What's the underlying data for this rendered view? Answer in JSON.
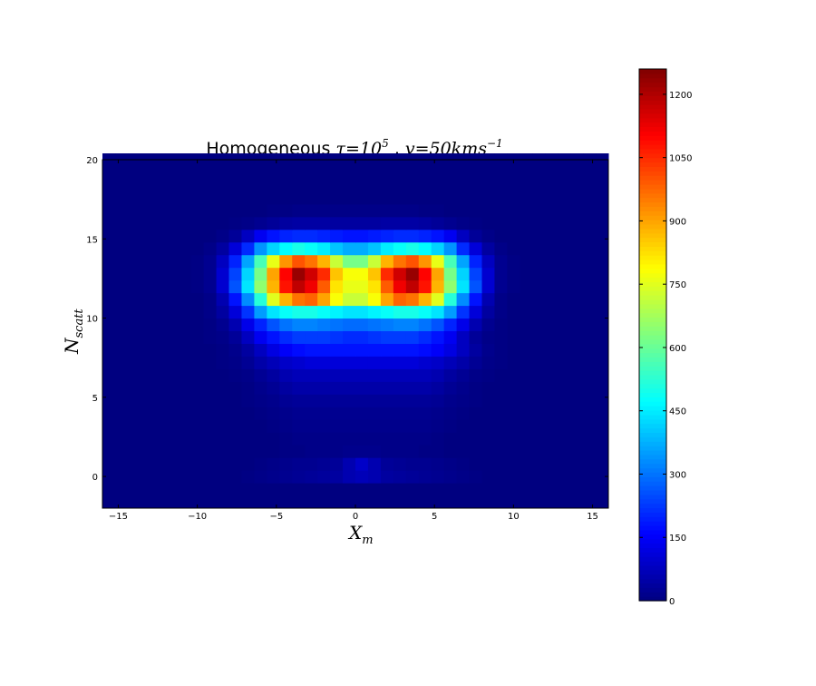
{
  "chart_data": {
    "type": "heatmap",
    "title": {
      "prefix": "Homogeneous ",
      "tau_symbol": "τ",
      "tau_eq": "=10",
      "tau_exp": "5",
      "separator": " , ",
      "v_symbol": "v",
      "v_eq": "=50kms",
      "v_exp": "−1"
    },
    "xlabel": {
      "base": "X",
      "sub": "m"
    },
    "ylabel": {
      "base": "N",
      "sub": "scatt"
    },
    "xlim": [
      -16,
      16
    ],
    "ylim": [
      -2,
      20
    ],
    "xticks": [
      -15,
      -10,
      -5,
      0,
      5,
      10,
      15
    ],
    "xtick_labels": [
      "−15",
      "−10",
      "−5",
      "0",
      "5",
      "10",
      "15"
    ],
    "yticks": [
      0,
      5,
      10,
      15,
      20
    ],
    "ytick_labels": [
      "0",
      "5",
      "10",
      "15",
      "20"
    ],
    "colormap": "jet",
    "colorbar": {
      "vmin": 0,
      "vmax": 1260,
      "ticks": [
        0,
        150,
        300,
        450,
        600,
        750,
        900,
        1050,
        1200
      ],
      "tick_labels": [
        "0",
        "150",
        "300",
        "450",
        "600",
        "750",
        "900",
        "1050",
        "1200"
      ]
    },
    "bins": {
      "x_start": -16,
      "x_step": 0.8,
      "nx": 40,
      "y_start": -2,
      "y_step": 0.8,
      "ny": 28
    },
    "rows_y_index": [
      0,
      1,
      2,
      3,
      4,
      5,
      6,
      7,
      8,
      9,
      10,
      11,
      12,
      13,
      14,
      15,
      16,
      17,
      18,
      19,
      20,
      21,
      22,
      23,
      24,
      25,
      26,
      27
    ],
    "values": [
      [
        0,
        0,
        0,
        0,
        0,
        0,
        0,
        0,
        0,
        0,
        0,
        0,
        0,
        0,
        0,
        0,
        0,
        0,
        0,
        0,
        0,
        0,
        0,
        0,
        0,
        0,
        0,
        0,
        0,
        0,
        0,
        0,
        0,
        0,
        0,
        0,
        0,
        0,
        0,
        0
      ],
      [
        0,
        0,
        0,
        0,
        0,
        0,
        0,
        0,
        0,
        0,
        0,
        0,
        0,
        0,
        0,
        0,
        0,
        0,
        0,
        0,
        0,
        0,
        0,
        0,
        0,
        0,
        0,
        0,
        0,
        0,
        0,
        0,
        0,
        0,
        0,
        0,
        0,
        0,
        0,
        0
      ],
      [
        0,
        0,
        0,
        0,
        0,
        0,
        0,
        0,
        0,
        0,
        0,
        5,
        10,
        15,
        20,
        25,
        30,
        35,
        40,
        60,
        70,
        60,
        40,
        35,
        30,
        25,
        20,
        15,
        10,
        5,
        0,
        0,
        0,
        0,
        0,
        0,
        0,
        0,
        0,
        0
      ],
      [
        0,
        0,
        0,
        0,
        0,
        0,
        0,
        0,
        0,
        0,
        0,
        0,
        5,
        10,
        15,
        20,
        20,
        25,
        30,
        60,
        90,
        60,
        30,
        25,
        20,
        20,
        15,
        10,
        5,
        0,
        0,
        0,
        0,
        0,
        0,
        0,
        0,
        0,
        0,
        0
      ],
      [
        0,
        0,
        0,
        0,
        0,
        0,
        0,
        0,
        0,
        0,
        0,
        0,
        0,
        0,
        5,
        5,
        10,
        10,
        10,
        15,
        15,
        15,
        10,
        10,
        10,
        5,
        5,
        0,
        0,
        0,
        0,
        0,
        0,
        0,
        0,
        0,
        0,
        0,
        0,
        0
      ],
      [
        0,
        0,
        0,
        0,
        0,
        0,
        0,
        0,
        0,
        0,
        0,
        0,
        0,
        0,
        5,
        10,
        10,
        10,
        10,
        10,
        10,
        10,
        10,
        10,
        10,
        10,
        5,
        0,
        0,
        0,
        0,
        0,
        0,
        0,
        0,
        0,
        0,
        0,
        0,
        0
      ],
      [
        0,
        0,
        0,
        0,
        0,
        0,
        0,
        0,
        0,
        0,
        0,
        0,
        0,
        5,
        10,
        15,
        15,
        15,
        15,
        15,
        15,
        15,
        15,
        15,
        15,
        15,
        10,
        5,
        0,
        0,
        0,
        0,
        0,
        0,
        0,
        0,
        0,
        0,
        0,
        0
      ],
      [
        0,
        0,
        0,
        0,
        0,
        0,
        0,
        0,
        0,
        0,
        0,
        0,
        5,
        10,
        15,
        20,
        20,
        20,
        20,
        20,
        20,
        20,
        20,
        20,
        20,
        20,
        15,
        10,
        5,
        0,
        0,
        0,
        0,
        0,
        0,
        0,
        0,
        0,
        0,
        0
      ],
      [
        0,
        0,
        0,
        0,
        0,
        0,
        0,
        0,
        0,
        0,
        0,
        5,
        10,
        15,
        25,
        30,
        30,
        30,
        30,
        30,
        30,
        30,
        30,
        30,
        30,
        30,
        25,
        15,
        10,
        5,
        0,
        0,
        0,
        0,
        0,
        0,
        0,
        0,
        0,
        0
      ],
      [
        0,
        0,
        0,
        0,
        0,
        0,
        0,
        0,
        0,
        0,
        0,
        5,
        15,
        25,
        40,
        50,
        50,
        50,
        50,
        50,
        50,
        50,
        50,
        50,
        50,
        50,
        40,
        25,
        15,
        5,
        0,
        0,
        0,
        0,
        0,
        0,
        0,
        0,
        0,
        0
      ],
      [
        0,
        0,
        0,
        0,
        0,
        0,
        0,
        0,
        0,
        0,
        5,
        10,
        25,
        40,
        60,
        70,
        70,
        70,
        70,
        70,
        70,
        70,
        70,
        70,
        70,
        70,
        60,
        40,
        25,
        10,
        5,
        0,
        0,
        0,
        0,
        0,
        0,
        0,
        0,
        0
      ],
      [
        0,
        0,
        0,
        0,
        0,
        0,
        0,
        0,
        0,
        5,
        10,
        25,
        50,
        70,
        90,
        100,
        110,
        110,
        110,
        110,
        110,
        110,
        110,
        110,
        110,
        100,
        90,
        70,
        50,
        25,
        10,
        5,
        0,
        0,
        0,
        0,
        0,
        0,
        0,
        0
      ],
      [
        0,
        0,
        0,
        0,
        0,
        0,
        0,
        0,
        0,
        5,
        15,
        40,
        80,
        120,
        150,
        170,
        180,
        180,
        180,
        180,
        180,
        180,
        180,
        180,
        180,
        170,
        150,
        120,
        80,
        40,
        15,
        5,
        0,
        0,
        0,
        0,
        0,
        0,
        0,
        0
      ],
      [
        0,
        0,
        0,
        0,
        0,
        0,
        0,
        0,
        5,
        10,
        30,
        80,
        140,
        180,
        210,
        230,
        230,
        230,
        220,
        210,
        210,
        220,
        230,
        230,
        230,
        210,
        180,
        140,
        80,
        30,
        10,
        5,
        0,
        0,
        0,
        0,
        0,
        0,
        0,
        0
      ],
      [
        0,
        0,
        0,
        0,
        0,
        0,
        0,
        0,
        5,
        20,
        60,
        130,
        200,
        260,
        300,
        320,
        320,
        310,
        300,
        290,
        290,
        300,
        310,
        320,
        320,
        300,
        260,
        200,
        130,
        60,
        20,
        5,
        0,
        0,
        0,
        0,
        0,
        0,
        0,
        0
      ],
      [
        0,
        0,
        0,
        0,
        0,
        0,
        0,
        0,
        10,
        40,
        110,
        220,
        350,
        440,
        480,
        500,
        500,
        480,
        460,
        440,
        440,
        460,
        480,
        500,
        500,
        480,
        440,
        350,
        220,
        110,
        40,
        10,
        0,
        0,
        0,
        0,
        0,
        0,
        0,
        0
      ],
      [
        0,
        0,
        0,
        0,
        0,
        0,
        0,
        0,
        10,
        60,
        180,
        330,
        520,
        750,
        880,
        960,
        980,
        900,
        780,
        720,
        720,
        780,
        900,
        980,
        960,
        880,
        750,
        520,
        330,
        180,
        60,
        10,
        0,
        0,
        0,
        0,
        0,
        0,
        0,
        0
      ],
      [
        0,
        0,
        0,
        0,
        0,
        0,
        0,
        5,
        20,
        100,
        260,
        440,
        650,
        880,
        1080,
        1180,
        1120,
        990,
        820,
        760,
        760,
        820,
        990,
        1120,
        1180,
        1080,
        880,
        650,
        440,
        260,
        100,
        20,
        5,
        0,
        0,
        0,
        0,
        0,
        0,
        0
      ],
      [
        0,
        0,
        0,
        0,
        0,
        0,
        0,
        5,
        20,
        100,
        240,
        420,
        620,
        900,
        1100,
        1230,
        1160,
        1050,
        860,
        780,
        780,
        860,
        1050,
        1160,
        1230,
        1100,
        900,
        620,
        420,
        240,
        100,
        20,
        5,
        0,
        0,
        0,
        0,
        0,
        0,
        0
      ],
      [
        0,
        0,
        0,
        0,
        0,
        0,
        0,
        5,
        20,
        80,
        200,
        360,
        560,
        760,
        920,
        1000,
        960,
        880,
        720,
        620,
        620,
        720,
        880,
        960,
        1000,
        920,
        760,
        560,
        360,
        200,
        80,
        20,
        5,
        0,
        0,
        0,
        0,
        0,
        0,
        0
      ],
      [
        0,
        0,
        0,
        0,
        0,
        0,
        0,
        0,
        10,
        40,
        110,
        210,
        340,
        420,
        470,
        500,
        480,
        450,
        400,
        370,
        370,
        400,
        450,
        480,
        500,
        470,
        420,
        340,
        210,
        110,
        40,
        10,
        0,
        0,
        0,
        0,
        0,
        0,
        0,
        0
      ],
      [
        0,
        0,
        0,
        0,
        0,
        0,
        0,
        0,
        0,
        10,
        30,
        80,
        140,
        180,
        200,
        210,
        210,
        200,
        190,
        180,
        180,
        190,
        200,
        210,
        210,
        200,
        180,
        140,
        80,
        30,
        10,
        0,
        0,
        0,
        0,
        0,
        0,
        0,
        0,
        0
      ],
      [
        0,
        0,
        0,
        0,
        0,
        0,
        0,
        0,
        0,
        0,
        5,
        10,
        20,
        30,
        40,
        45,
        45,
        45,
        40,
        40,
        40,
        40,
        45,
        45,
        45,
        40,
        30,
        20,
        10,
        5,
        0,
        0,
        0,
        0,
        0,
        0,
        0,
        0,
        0,
        0
      ],
      [
        0,
        0,
        0,
        0,
        0,
        0,
        0,
        0,
        0,
        0,
        0,
        0,
        0,
        5,
        5,
        10,
        10,
        10,
        10,
        10,
        10,
        10,
        10,
        10,
        10,
        5,
        5,
        0,
        0,
        0,
        0,
        0,
        0,
        0,
        0,
        0,
        0,
        0,
        0,
        0
      ],
      [
        0,
        0,
        0,
        0,
        0,
        0,
        0,
        0,
        0,
        0,
        0,
        0,
        0,
        0,
        0,
        0,
        0,
        0,
        0,
        0,
        0,
        0,
        0,
        0,
        0,
        0,
        0,
        0,
        0,
        0,
        0,
        0,
        0,
        0,
        0,
        0,
        0,
        0,
        0,
        0
      ],
      [
        0,
        0,
        0,
        0,
        0,
        0,
        0,
        0,
        0,
        0,
        0,
        0,
        0,
        0,
        0,
        0,
        0,
        0,
        0,
        0,
        0,
        0,
        0,
        0,
        0,
        0,
        0,
        0,
        0,
        0,
        0,
        0,
        0,
        0,
        0,
        0,
        0,
        0,
        0,
        0
      ],
      [
        0,
        0,
        0,
        0,
        0,
        0,
        0,
        0,
        0,
        0,
        0,
        0,
        0,
        0,
        0,
        0,
        0,
        0,
        0,
        0,
        0,
        0,
        0,
        0,
        0,
        0,
        0,
        0,
        0,
        0,
        0,
        0,
        0,
        0,
        0,
        0,
        0,
        0,
        0,
        0
      ],
      [
        0,
        0,
        0,
        0,
        0,
        0,
        0,
        0,
        0,
        0,
        0,
        0,
        0,
        0,
        0,
        0,
        0,
        0,
        0,
        0,
        0,
        0,
        0,
        0,
        0,
        0,
        0,
        0,
        0,
        0,
        0,
        0,
        0,
        0,
        0,
        0,
        0,
        0,
        0,
        0
      ]
    ]
  }
}
